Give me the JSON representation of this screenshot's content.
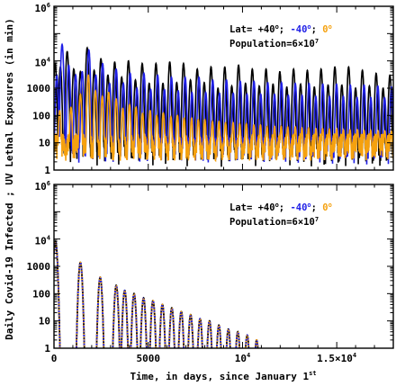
{
  "figure": {
    "ylabel": "Daily Covid-19 Infected ; UV Lethal Exposures (in min)",
    "xlabel": "Time, in days, since January 1",
    "xlabel_superscript": "st"
  },
  "colors": {
    "black": "#000000",
    "blue": "#1f1fe6",
    "orange": "#f5a10f"
  },
  "chart_data": [
    {
      "type": "line",
      "title": "",
      "legend": {
        "placement": "top-right",
        "lat_prefix": "Lat= +40",
        "lat_sep1": "; ",
        "lat_mid": "-40",
        "lat_sep2": "; ",
        "lat_end": "0",
        "degree": "o",
        "population_prefix": "Population=6×10",
        "population_exp": "7"
      },
      "y_scale": "log",
      "ylim": [
        1,
        1000000
      ],
      "xlim": [
        0,
        18000
      ],
      "y_ticks": [
        {
          "value": 1,
          "label": "1"
        },
        {
          "value": 10,
          "label": "10"
        },
        {
          "value": 100,
          "label": "100"
        },
        {
          "value": 1000,
          "label": "1000"
        },
        {
          "value": 10000,
          "base": "10",
          "exp": "4"
        },
        {
          "value": 1000000,
          "base": "10",
          "exp": "6"
        }
      ],
      "series": [
        {
          "color_key": "black",
          "label": "+40",
          "peaks": [
            [
              60,
              8000
            ],
            [
              340,
              6000
            ],
            [
              700,
              22000
            ],
            [
              1050,
              5000
            ],
            [
              1400,
              4000
            ],
            [
              1760,
              30000
            ],
            [
              2130,
              4500
            ],
            [
              2490,
              12000
            ],
            [
              2860,
              3000
            ],
            [
              3220,
              9000
            ],
            [
              3590,
              2500
            ],
            [
              3950,
              10000
            ],
            [
              4320,
              2000
            ],
            [
              4680,
              8000
            ],
            [
              5050,
              1500
            ],
            [
              5410,
              8000
            ],
            [
              5780,
              1500
            ],
            [
              6140,
              9000
            ],
            [
              6510,
              1600
            ],
            [
              6870,
              8000
            ],
            [
              7240,
              2000
            ],
            [
              7600,
              5000
            ],
            [
              7970,
              1600
            ],
            [
              8330,
              6000
            ],
            [
              8700,
              1000
            ],
            [
              9060,
              6000
            ],
            [
              9430,
              1200
            ],
            [
              9790,
              7000
            ],
            [
              10160,
              1500
            ],
            [
              10520,
              5000
            ],
            [
              10890,
              1200
            ],
            [
              11250,
              5000
            ],
            [
              11620,
              1400
            ],
            [
              11980,
              4000
            ],
            [
              12350,
              1100
            ],
            [
              12710,
              5000
            ],
            [
              13080,
              1400
            ],
            [
              13440,
              4500
            ],
            [
              13810,
              1100
            ],
            [
              14170,
              5000
            ],
            [
              14540,
              1300
            ],
            [
              14900,
              6000
            ],
            [
              15270,
              1300
            ],
            [
              15630,
              6000
            ],
            [
              16000,
              1000
            ],
            [
              16360,
              4500
            ],
            [
              16730,
              1200
            ],
            [
              17090,
              3500
            ],
            [
              17460,
              1000
            ],
            [
              17820,
              3000
            ]
          ]
        },
        {
          "color_key": "blue",
          "label": "-40",
          "peaks": [
            [
              150,
              3000
            ],
            [
              430,
              40000
            ],
            [
              780,
              7000
            ],
            [
              1150,
              3000
            ],
            [
              1500,
              4000
            ],
            [
              1850,
              25000
            ],
            [
              2220,
              3000
            ],
            [
              2580,
              8000
            ],
            [
              2950,
              1500
            ],
            [
              3300,
              5000
            ],
            [
              3680,
              1500
            ],
            [
              4040,
              3500
            ],
            [
              4400,
              1000
            ],
            [
              4770,
              3500
            ],
            [
              5130,
              900
            ],
            [
              5500,
              3000
            ],
            [
              5860,
              900
            ],
            [
              6230,
              2500
            ],
            [
              6590,
              800
            ],
            [
              6960,
              2500
            ],
            [
              7320,
              700
            ],
            [
              7690,
              2500
            ],
            [
              8050,
              700
            ],
            [
              8420,
              2000
            ],
            [
              8780,
              650
            ],
            [
              9150,
              2000
            ],
            [
              9510,
              650
            ],
            [
              9880,
              1800
            ],
            [
              10240,
              600
            ],
            [
              10610,
              1800
            ],
            [
              10970,
              600
            ],
            [
              11340,
              1600
            ],
            [
              11700,
              600
            ],
            [
              12070,
              1600
            ],
            [
              12430,
              550
            ],
            [
              12800,
              1500
            ],
            [
              13160,
              550
            ],
            [
              13530,
              1500
            ],
            [
              13890,
              500
            ],
            [
              14260,
              1400
            ],
            [
              14620,
              500
            ],
            [
              14990,
              1400
            ],
            [
              15350,
              500
            ],
            [
              15720,
              1300
            ],
            [
              16080,
              450
            ],
            [
              16450,
              1300
            ],
            [
              16810,
              450
            ],
            [
              17180,
              1200
            ],
            [
              17540,
              450
            ],
            [
              17900,
              1100
            ]
          ]
        },
        {
          "color_key": "orange",
          "label": "0",
          "peaks": [
            [
              300,
              150
            ],
            [
              900,
              200
            ],
            [
              1400,
              600
            ],
            [
              1820,
              3000
            ],
            [
              2200,
              800
            ],
            [
              2560,
              500
            ],
            [
              2900,
              700
            ],
            [
              3300,
              400
            ],
            [
              3650,
              180
            ],
            [
              4000,
              250
            ],
            [
              4350,
              200
            ],
            [
              4700,
              120
            ],
            [
              5100,
              150
            ],
            [
              5450,
              100
            ],
            [
              5800,
              120
            ],
            [
              6200,
              90
            ],
            [
              6550,
              100
            ],
            [
              6900,
              80
            ],
            [
              7300,
              80
            ],
            [
              7650,
              70
            ],
            [
              8000,
              70
            ],
            [
              8400,
              60
            ],
            [
              8750,
              60
            ],
            [
              9100,
              55
            ],
            [
              9500,
              55
            ],
            [
              9850,
              50
            ],
            [
              10200,
              50
            ],
            [
              10600,
              45
            ],
            [
              10950,
              45
            ],
            [
              11300,
              40
            ],
            [
              11700,
              40
            ],
            [
              12050,
              40
            ],
            [
              12400,
              38
            ],
            [
              12800,
              38
            ],
            [
              13150,
              35
            ],
            [
              13500,
              35
            ],
            [
              13900,
              33
            ],
            [
              14250,
              33
            ],
            [
              14600,
              32
            ],
            [
              15000,
              32
            ],
            [
              15350,
              30
            ],
            [
              15700,
              30
            ],
            [
              16100,
              30
            ],
            [
              16450,
              28
            ],
            [
              16800,
              28
            ],
            [
              17200,
              27
            ],
            [
              17550,
              27
            ],
            [
              17900,
              26
            ]
          ]
        }
      ]
    },
    {
      "type": "line",
      "title": "",
      "legend": {
        "placement": "top-right",
        "lat_prefix": "Lat= +40",
        "lat_sep1": "; ",
        "lat_mid": "-40",
        "lat_sep2": "; ",
        "lat_end": "0",
        "degree": "o",
        "population_prefix": "Population=6×10",
        "population_exp": "7"
      },
      "y_scale": "log",
      "ylim": [
        1,
        1000000
      ],
      "xlim": [
        0,
        18000
      ],
      "y_ticks": [
        {
          "value": 1,
          "label": "1"
        },
        {
          "value": 10,
          "label": "10"
        },
        {
          "value": 100,
          "label": "100"
        },
        {
          "value": 1000,
          "label": "1000"
        },
        {
          "value": 10000,
          "base": "10",
          "exp": "4"
        },
        {
          "value": 1000000,
          "base": "10",
          "exp": "6"
        }
      ],
      "x_ticks": [
        {
          "value": 0,
          "label": "0"
        },
        {
          "value": 5000,
          "label": "5000"
        },
        {
          "value": 10000,
          "base": "10",
          "exp": "4"
        },
        {
          "value": 15000,
          "base": "1.5×10",
          "exp": "4"
        }
      ],
      "series": [
        {
          "color_key": "black",
          "label": "+40",
          "style": "solid",
          "peaks": [
            [
              80,
              8000
            ],
            [
              1400,
              1400
            ],
            [
              2450,
              400
            ],
            [
              3300,
              200
            ],
            [
              3750,
              130
            ],
            [
              4250,
              100
            ],
            [
              4750,
              70
            ],
            [
              5250,
              55
            ],
            [
              5750,
              40
            ],
            [
              6250,
              30
            ],
            [
              6750,
              22
            ],
            [
              7250,
              17
            ],
            [
              7750,
              12
            ],
            [
              8250,
              10
            ],
            [
              8750,
              7
            ],
            [
              9250,
              5
            ],
            [
              9750,
              4
            ],
            [
              10250,
              3
            ],
            [
              10750,
              2
            ]
          ]
        },
        {
          "color_key": "blue",
          "label": "-40",
          "style": "dashed",
          "peaks": []
        },
        {
          "color_key": "orange",
          "label": "0",
          "style": "dotted",
          "peaks": []
        }
      ]
    }
  ]
}
